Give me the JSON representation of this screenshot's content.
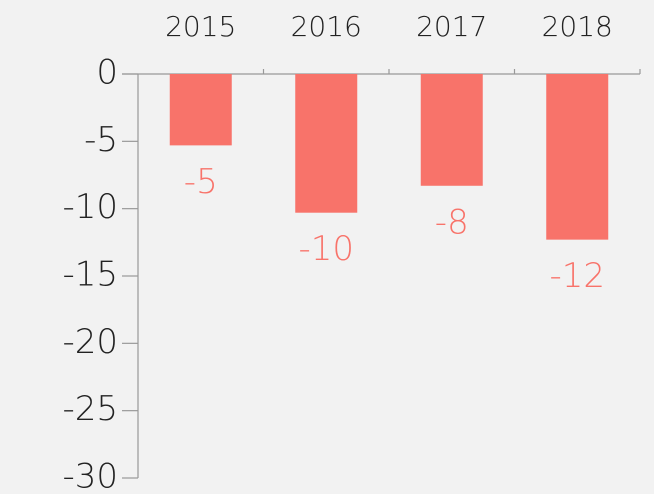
{
  "chart_data": {
    "type": "bar",
    "categories": [
      "2015",
      "2016",
      "2017",
      "2018"
    ],
    "values": [
      -5.3,
      -10.3,
      -8.3,
      -12.3
    ],
    "value_labels": [
      "-5",
      "-10",
      "-8",
      "-12"
    ],
    "color": "#f8736a",
    "ylim": [
      -30,
      0
    ],
    "yticks": [
      0,
      -5,
      -10,
      -15,
      -20,
      -25,
      -30
    ],
    "grid": false
  }
}
